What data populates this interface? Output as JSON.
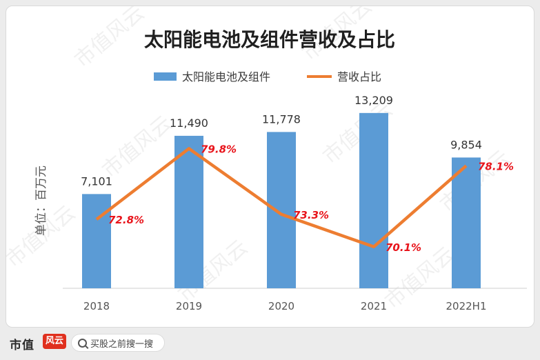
{
  "chart_data": {
    "type": "bar",
    "title": "太阳能电池及组件营收及占比",
    "ylabel": "单位：百万元",
    "categories": [
      "2018",
      "2019",
      "2020",
      "2021",
      "2022H1"
    ],
    "series": [
      {
        "name": "太阳能电池及组件",
        "type": "bar",
        "values": [
          7101,
          11490,
          11778,
          13209,
          9854
        ],
        "labels": [
          "7,101",
          "11,490",
          "11,778",
          "13,209",
          "9,854"
        ],
        "color": "#5b9bd5"
      },
      {
        "name": "营收占比",
        "type": "line",
        "values": [
          72.8,
          79.8,
          73.3,
          70.1,
          78.1
        ],
        "labels": [
          "72.8%",
          "79.8%",
          "73.3%",
          "70.1%",
          "78.1%"
        ],
        "color": "#ed7d31",
        "label_color": "#e8141b"
      }
    ],
    "ylim_left": [
      0,
      14500
    ],
    "ylim_right": [
      66,
      85
    ],
    "legend_position": "top-center",
    "grid": false
  },
  "watermark": "市值风云",
  "footer": {
    "brand": "市值",
    "brand_mark": "风云",
    "search_placeholder": "买股之前搜一搜",
    "search_icon": "search-icon"
  }
}
